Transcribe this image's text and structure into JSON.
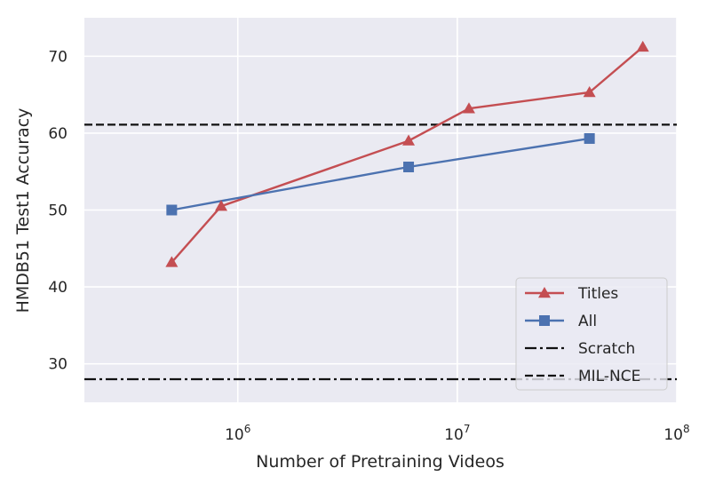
{
  "chart_data": {
    "type": "line",
    "title": "",
    "xlabel": "Number of Pretraining Videos",
    "ylabel": "HMDB51 Test1 Accuracy",
    "x_scale": "log",
    "xlim": [
      200000,
      100000000
    ],
    "ylim": [
      25,
      75
    ],
    "x_ticks": [
      {
        "value": 1000000,
        "base": "10",
        "exp": "6"
      },
      {
        "value": 10000000,
        "base": "10",
        "exp": "7"
      },
      {
        "value": 100000000,
        "base": "10",
        "exp": "8"
      }
    ],
    "y_ticks": [
      {
        "value": 30,
        "label": "30"
      },
      {
        "value": 40,
        "label": "40"
      },
      {
        "value": 50,
        "label": "50"
      },
      {
        "value": 60,
        "label": "60"
      },
      {
        "value": 70,
        "label": "70"
      }
    ],
    "grid": true,
    "legend_position": "bottom-right",
    "series": [
      {
        "name": "Titles",
        "color": "#c44e52",
        "marker": "triangle",
        "x": [
          500000,
          840000,
          6000000,
          11300000,
          40000000,
          70000000
        ],
        "y": [
          43.2,
          50.5,
          59.0,
          63.2,
          65.3,
          71.2
        ]
      },
      {
        "name": "All",
        "color": "#4c72b0",
        "marker": "square",
        "x": [
          500000,
          6000000,
          40000000
        ],
        "y": [
          50.0,
          55.6,
          59.3
        ]
      }
    ],
    "reference_lines": [
      {
        "name": "Scratch",
        "value": 28.0,
        "style": "dash-dot",
        "color": "#111111"
      },
      {
        "name": "MIL-NCE",
        "value": 61.1,
        "style": "dashed",
        "color": "#111111"
      }
    ]
  }
}
